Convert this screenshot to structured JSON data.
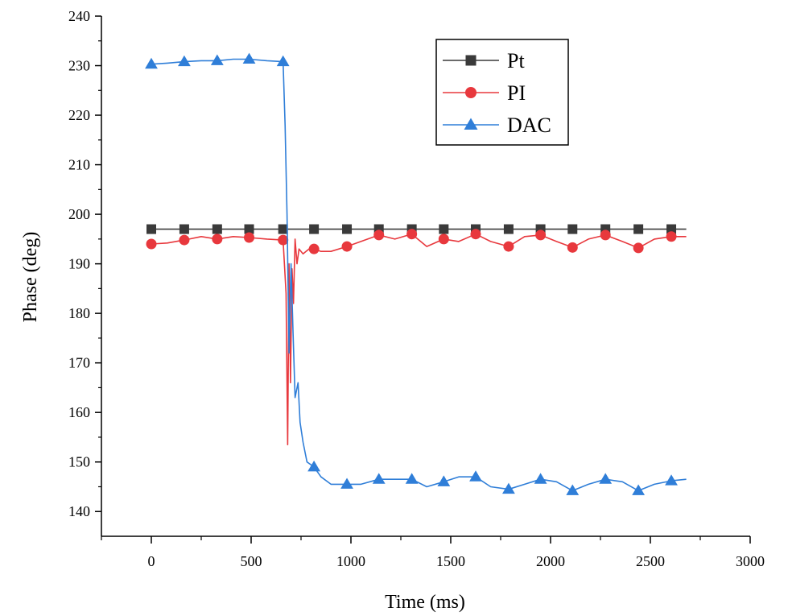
{
  "chart_data": {
    "type": "line",
    "title": "",
    "xlabel": "Time (ms)",
    "ylabel": "Phase (deg)",
    "xlim": [
      -250,
      3000
    ],
    "ylim": [
      135,
      240
    ],
    "xticks": [
      0,
      500,
      1000,
      1500,
      2000,
      2500,
      3000
    ],
    "yticks": [
      140,
      150,
      160,
      170,
      180,
      190,
      200,
      210,
      220,
      230,
      240
    ],
    "grid": false,
    "legend_position": "top-right",
    "series": [
      {
        "name": "Pt",
        "color": "#3a3a3a",
        "marker": "square",
        "x": [
          0,
          100,
          200,
          300,
          400,
          500,
          600,
          660,
          700,
          800,
          900,
          1000,
          1100,
          1200,
          1300,
          1400,
          1500,
          1600,
          1700,
          1800,
          1900,
          2000,
          2100,
          2200,
          2300,
          2400,
          2500,
          2600,
          2680
        ],
        "y": [
          197,
          197,
          197,
          197,
          197,
          197,
          197,
          197,
          197,
          197,
          197,
          197,
          197,
          197,
          197,
          197,
          197,
          197,
          197,
          197,
          197,
          197,
          197,
          197,
          197,
          197,
          197,
          197,
          197
        ],
        "marker_x": [
          0,
          165,
          330,
          490,
          660,
          815,
          980,
          1140,
          1305,
          1465,
          1625,
          1790,
          1950,
          2110,
          2275,
          2440,
          2605
        ]
      },
      {
        "name": "PI",
        "color": "#e8383d",
        "marker": "circle",
        "x": [
          0,
          80,
          165,
          250,
          330,
          410,
          490,
          580,
          660,
          675,
          683,
          690,
          697,
          705,
          712,
          720,
          730,
          740,
          760,
          790,
          815,
          850,
          900,
          980,
          1050,
          1140,
          1220,
          1305,
          1380,
          1465,
          1540,
          1625,
          1700,
          1790,
          1870,
          1950,
          2030,
          2110,
          2190,
          2275,
          2360,
          2440,
          2520,
          2605,
          2680
        ],
        "y": [
          194,
          194.2,
          194.8,
          195.5,
          195,
          195.5,
          195.3,
          195,
          194.8,
          184,
          153.5,
          190,
          166,
          189,
          182,
          195,
          190,
          193,
          192,
          193,
          193,
          192.5,
          192.5,
          193.5,
          194.5,
          195.8,
          195,
          196,
          193.5,
          195,
          194.5,
          196,
          194.5,
          193.5,
          195.5,
          195.8,
          194.5,
          193.3,
          195,
          195.8,
          194.5,
          193.2,
          195,
          195.5,
          195.5
        ],
        "marker_x": [
          0,
          165,
          330,
          490,
          660,
          815,
          980,
          1140,
          1305,
          1465,
          1625,
          1790,
          1950,
          2110,
          2275,
          2440,
          2605
        ]
      },
      {
        "name": "DAC",
        "color": "#2f7ed8",
        "marker": "triangle",
        "x": [
          0,
          80,
          165,
          250,
          330,
          410,
          490,
          580,
          660,
          670,
          680,
          690,
          700,
          710,
          720,
          735,
          745,
          760,
          780,
          815,
          850,
          900,
          980,
          1050,
          1140,
          1220,
          1305,
          1380,
          1465,
          1540,
          1625,
          1700,
          1790,
          1870,
          1950,
          2030,
          2110,
          2190,
          2275,
          2360,
          2440,
          2520,
          2605,
          2680
        ],
        "y": [
          230.3,
          230.5,
          230.8,
          231,
          231,
          231.3,
          231.3,
          231,
          230.8,
          218,
          200,
          172,
          190,
          176,
          163,
          166,
          158,
          154,
          150,
          149,
          147,
          145.5,
          145.5,
          145.5,
          146.5,
          146.5,
          146.5,
          145,
          146,
          147,
          147,
          145,
          144.5,
          145.5,
          146.5,
          146,
          144.2,
          145.5,
          146.5,
          146,
          144.2,
          145.5,
          146.2,
          146.5
        ],
        "marker_x": [
          0,
          165,
          330,
          490,
          660,
          815,
          980,
          1140,
          1305,
          1465,
          1625,
          1790,
          1950,
          2110,
          2275,
          2440,
          2605
        ]
      }
    ]
  }
}
